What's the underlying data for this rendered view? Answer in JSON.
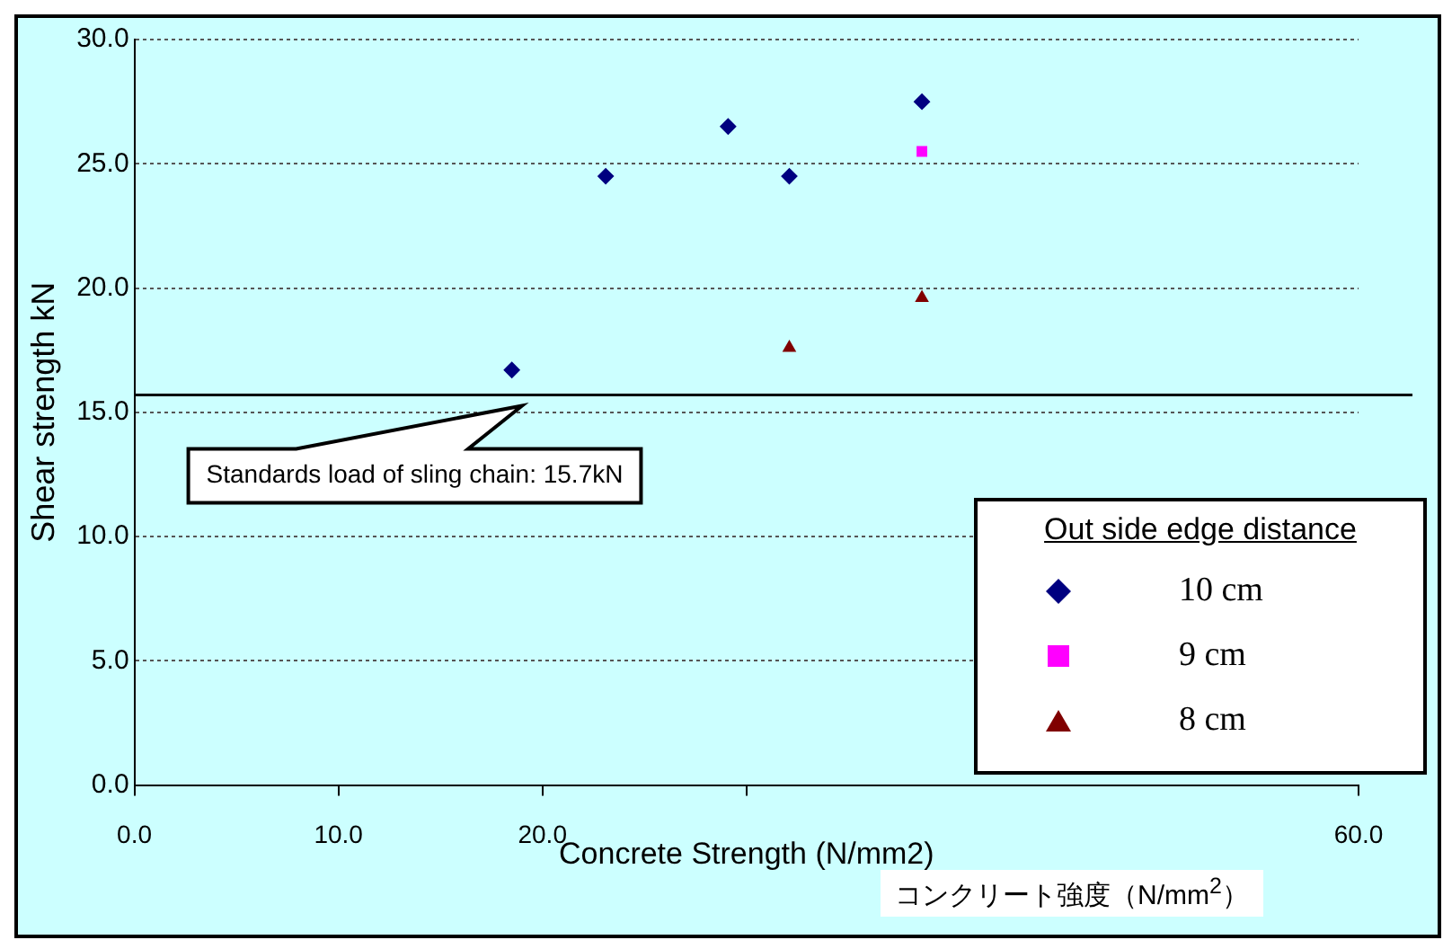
{
  "chart_data": {
    "type": "scatter",
    "xlabel": "Concrete Strength (N/mm2)",
    "ylabel": "Shear strength kN",
    "legend_title": "Out side edge distance",
    "series": [
      {
        "name": "10 cm",
        "color": "#000080",
        "marker": "diamond",
        "x": [
          18.5,
          23.1,
          29.1,
          32.1,
          38.6
        ],
        "values": [
          16.7,
          24.5,
          26.5,
          24.5,
          27.5
        ]
      },
      {
        "name": "9 cm",
        "color": "#ff00ff",
        "marker": "square",
        "x": [
          38.6
        ],
        "values": [
          25.5
        ]
      },
      {
        "name": "8 cm",
        "color": "#800000",
        "marker": "triangle",
        "x": [
          32.1,
          38.6
        ],
        "values": [
          17.6,
          19.6
        ]
      }
    ],
    "xlim": [
      0,
      60
    ],
    "xticks": [
      {
        "value": 0,
        "label": "0.0"
      },
      {
        "value": 10,
        "label": "10.0"
      },
      {
        "value": 20,
        "label": "20.0"
      },
      {
        "value": 30,
        "label": null
      },
      {
        "value": 60,
        "label": "60.0"
      }
    ],
    "ylim": [
      0,
      30
    ],
    "yticks": [
      {
        "value": 0,
        "label": "0.0"
      },
      {
        "value": 5,
        "label": "5.0"
      },
      {
        "value": 10,
        "label": "10.0"
      },
      {
        "value": 15,
        "label": "15.0"
      },
      {
        "value": 20,
        "label": "20.0"
      },
      {
        "value": 25,
        "label": "25.0"
      },
      {
        "value": 30,
        "label": "30.0"
      }
    ],
    "ref_lines": [
      {
        "axis": "y",
        "value": 15.7,
        "label": "Standards load of sling chain: 15.7kN",
        "color": "#000000",
        "line_style": "solid"
      }
    ],
    "annotations": [
      "コンクリート強度（N/mm$^{2}$）"
    ],
    "grid": "y",
    "legend": "bottom right"
  }
}
